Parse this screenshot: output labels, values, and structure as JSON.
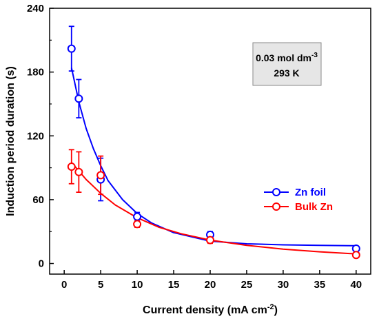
{
  "chart_data": {
    "type": "scatter",
    "xlabel": "Current density (mA cm",
    "xlabel_sup": "-2",
    "xlabel_tail": ")",
    "ylabel": "Induction period duration (s)",
    "xlim": [
      -2,
      42
    ],
    "ylim": [
      -10,
      240
    ],
    "xticks": [
      0,
      5,
      10,
      15,
      20,
      25,
      30,
      35,
      40
    ],
    "yticks": [
      0,
      60,
      120,
      180,
      240
    ],
    "grid": false,
    "legend_position": "right",
    "annotation": {
      "line1": "0.03 mol dm",
      "line1_sup": "-3",
      "line2": "293 K"
    },
    "series": [
      {
        "name": "Zn foil",
        "color": "#0000ff",
        "marker": "open-circle",
        "x": [
          1,
          2,
          5,
          10,
          20,
          40
        ],
        "y": [
          202,
          155,
          79,
          44,
          27,
          14
        ],
        "yerr": [
          21,
          18,
          20,
          4,
          3,
          2
        ],
        "fit_curve": [
          [
            1,
            184
          ],
          [
            2,
            152
          ],
          [
            3,
            127
          ],
          [
            4,
            108
          ],
          [
            5,
            92
          ],
          [
            6,
            78
          ],
          [
            8,
            60
          ],
          [
            10,
            47
          ],
          [
            12,
            38
          ],
          [
            15,
            29
          ],
          [
            20,
            21
          ],
          [
            25,
            18.5
          ],
          [
            30,
            17.5
          ],
          [
            35,
            17
          ],
          [
            40,
            16.7
          ]
        ]
      },
      {
        "name": "Bulk Zn",
        "color": "#ff0000",
        "marker": "open-circle",
        "x": [
          1,
          2,
          5,
          10,
          20,
          40
        ],
        "y": [
          91,
          86,
          83,
          37,
          22,
          8
        ],
        "yerr": [
          16,
          19,
          18,
          3,
          3,
          2
        ],
        "fit_curve": [
          [
            1,
            95
          ],
          [
            2,
            87
          ],
          [
            3,
            79
          ],
          [
            5,
            66
          ],
          [
            7,
            55
          ],
          [
            10,
            43
          ],
          [
            13,
            34
          ],
          [
            16,
            28
          ],
          [
            20,
            22
          ],
          [
            25,
            17
          ],
          [
            30,
            13.5
          ],
          [
            35,
            11
          ],
          [
            40,
            9
          ]
        ]
      }
    ]
  }
}
